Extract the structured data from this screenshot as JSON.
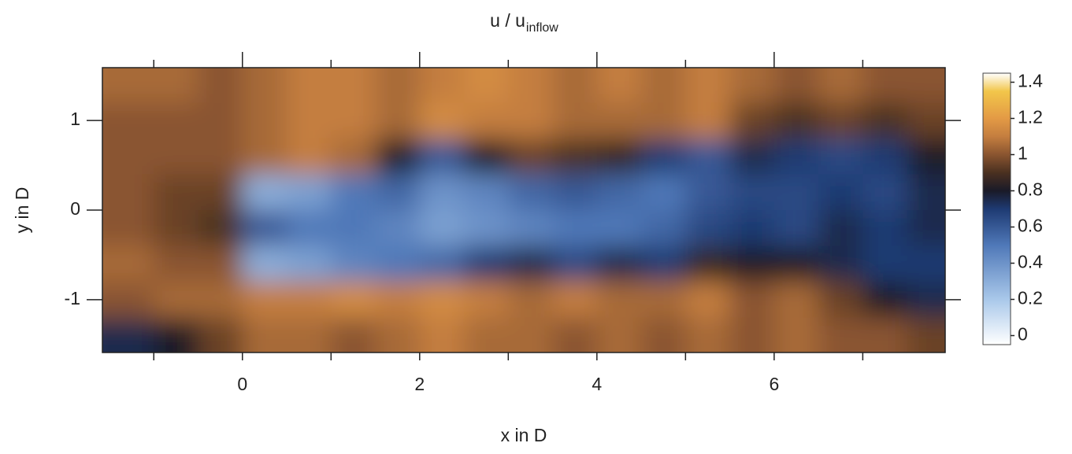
{
  "chart_data": {
    "type": "heatmap",
    "title": "u / u",
    "title_subscript": "inflow",
    "xlabel": "x in D",
    "ylabel": "y in D",
    "x": [
      -1.25,
      -0.75,
      -0.25,
      0.25,
      0.75,
      1.25,
      1.75,
      2.25,
      2.75,
      3.25,
      3.75,
      4.25,
      4.75,
      5.25,
      5.75,
      6.25,
      6.75,
      7.25,
      7.75
    ],
    "y": [
      1.4,
      1.0,
      0.6,
      0.2,
      -0.2,
      -0.6,
      -1.0,
      -1.4
    ],
    "z": [
      [
        1.05,
        1.05,
        1.0,
        1.05,
        1.1,
        1.1,
        1.05,
        1.1,
        1.15,
        1.1,
        1.05,
        1.1,
        1.05,
        1.1,
        1.05,
        1.0,
        1.05,
        1.0,
        1.0
      ],
      [
        1.0,
        1.0,
        1.0,
        1.05,
        1.1,
        1.1,
        1.05,
        1.15,
        1.1,
        1.1,
        1.05,
        1.05,
        1.05,
        1.1,
        0.95,
        0.9,
        0.95,
        0.9,
        0.95
      ],
      [
        1.0,
        1.0,
        1.0,
        1.05,
        1.1,
        1.05,
        0.8,
        0.6,
        0.8,
        0.95,
        0.9,
        0.85,
        0.7,
        0.6,
        0.75,
        0.7,
        0.65,
        0.7,
        0.8
      ],
      [
        1.0,
        0.95,
        0.95,
        0.3,
        0.35,
        0.5,
        0.55,
        0.4,
        0.45,
        0.55,
        0.6,
        0.55,
        0.5,
        0.6,
        0.65,
        0.65,
        0.7,
        0.65,
        0.75
      ],
      [
        1.0,
        0.95,
        0.9,
        0.6,
        0.5,
        0.5,
        0.45,
        0.35,
        0.4,
        0.45,
        0.5,
        0.5,
        0.55,
        0.65,
        0.7,
        0.65,
        0.75,
        0.7,
        0.75
      ],
      [
        1.05,
        1.0,
        1.0,
        0.3,
        0.35,
        0.45,
        0.5,
        0.55,
        0.7,
        0.75,
        0.65,
        0.75,
        0.7,
        0.85,
        0.8,
        0.8,
        0.75,
        0.7,
        0.7
      ],
      [
        1.0,
        1.05,
        1.05,
        1.1,
        1.1,
        1.15,
        1.1,
        1.15,
        1.1,
        1.05,
        1.1,
        1.05,
        1.05,
        1.1,
        1.0,
        1.05,
        0.95,
        0.8,
        0.75
      ],
      [
        0.75,
        0.8,
        0.95,
        1.05,
        1.05,
        1.0,
        1.05,
        1.1,
        1.05,
        1.05,
        1.0,
        1.05,
        1.0,
        1.05,
        1.0,
        1.05,
        1.0,
        1.0,
        0.95
      ]
    ],
    "xlim": [
      -1.58,
      7.93
    ],
    "ylim": [
      -1.59,
      1.59
    ],
    "xticks": [
      0,
      2,
      4,
      6
    ],
    "xminorticks": [
      -1,
      1,
      3,
      5,
      7
    ],
    "yticks": [
      -1,
      0,
      1
    ],
    "clim": [
      -0.05,
      1.45
    ],
    "colorbar_ticks": [
      0,
      0.2,
      0.4,
      0.6,
      0.8,
      1,
      1.2,
      1.4
    ],
    "colorscale": [
      [
        -0.05,
        "#ffffff"
      ],
      [
        0.2,
        "#a9c8ea"
      ],
      [
        0.5,
        "#4f78b8"
      ],
      [
        0.7,
        "#1e3a72"
      ],
      [
        0.8,
        "#1a1a28"
      ],
      [
        0.9,
        "#4a3020"
      ],
      [
        1.0,
        "#8a5530"
      ],
      [
        1.1,
        "#c47e3f"
      ],
      [
        1.2,
        "#e39a45"
      ],
      [
        1.35,
        "#f2c64a"
      ],
      [
        1.45,
        "#ffffff"
      ]
    ]
  }
}
